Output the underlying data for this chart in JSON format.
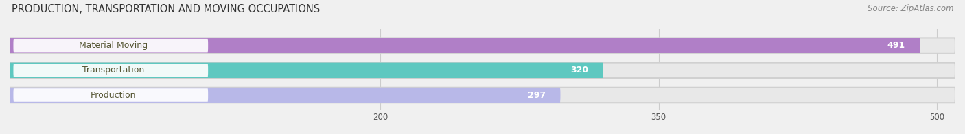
{
  "title": "PRODUCTION, TRANSPORTATION AND MOVING OCCUPATIONS",
  "source": "Source: ZipAtlas.com",
  "categories": [
    "Material Moving",
    "Transportation",
    "Production"
  ],
  "values": [
    491,
    320,
    297
  ],
  "bar_colors": [
    "#b07fc7",
    "#5ec8c0",
    "#b8b8e8"
  ],
  "bar_bg_color": "#e8e8e8",
  "label_bg_color": "#ffffff",
  "xticks": [
    200,
    350,
    500
  ],
  "xmin": 0,
  "xmax": 510,
  "title_fontsize": 10.5,
  "source_fontsize": 8.5,
  "label_fontsize": 9,
  "value_fontsize": 9,
  "bar_height": 0.62,
  "figsize": [
    14.06,
    1.96
  ],
  "dpi": 100
}
